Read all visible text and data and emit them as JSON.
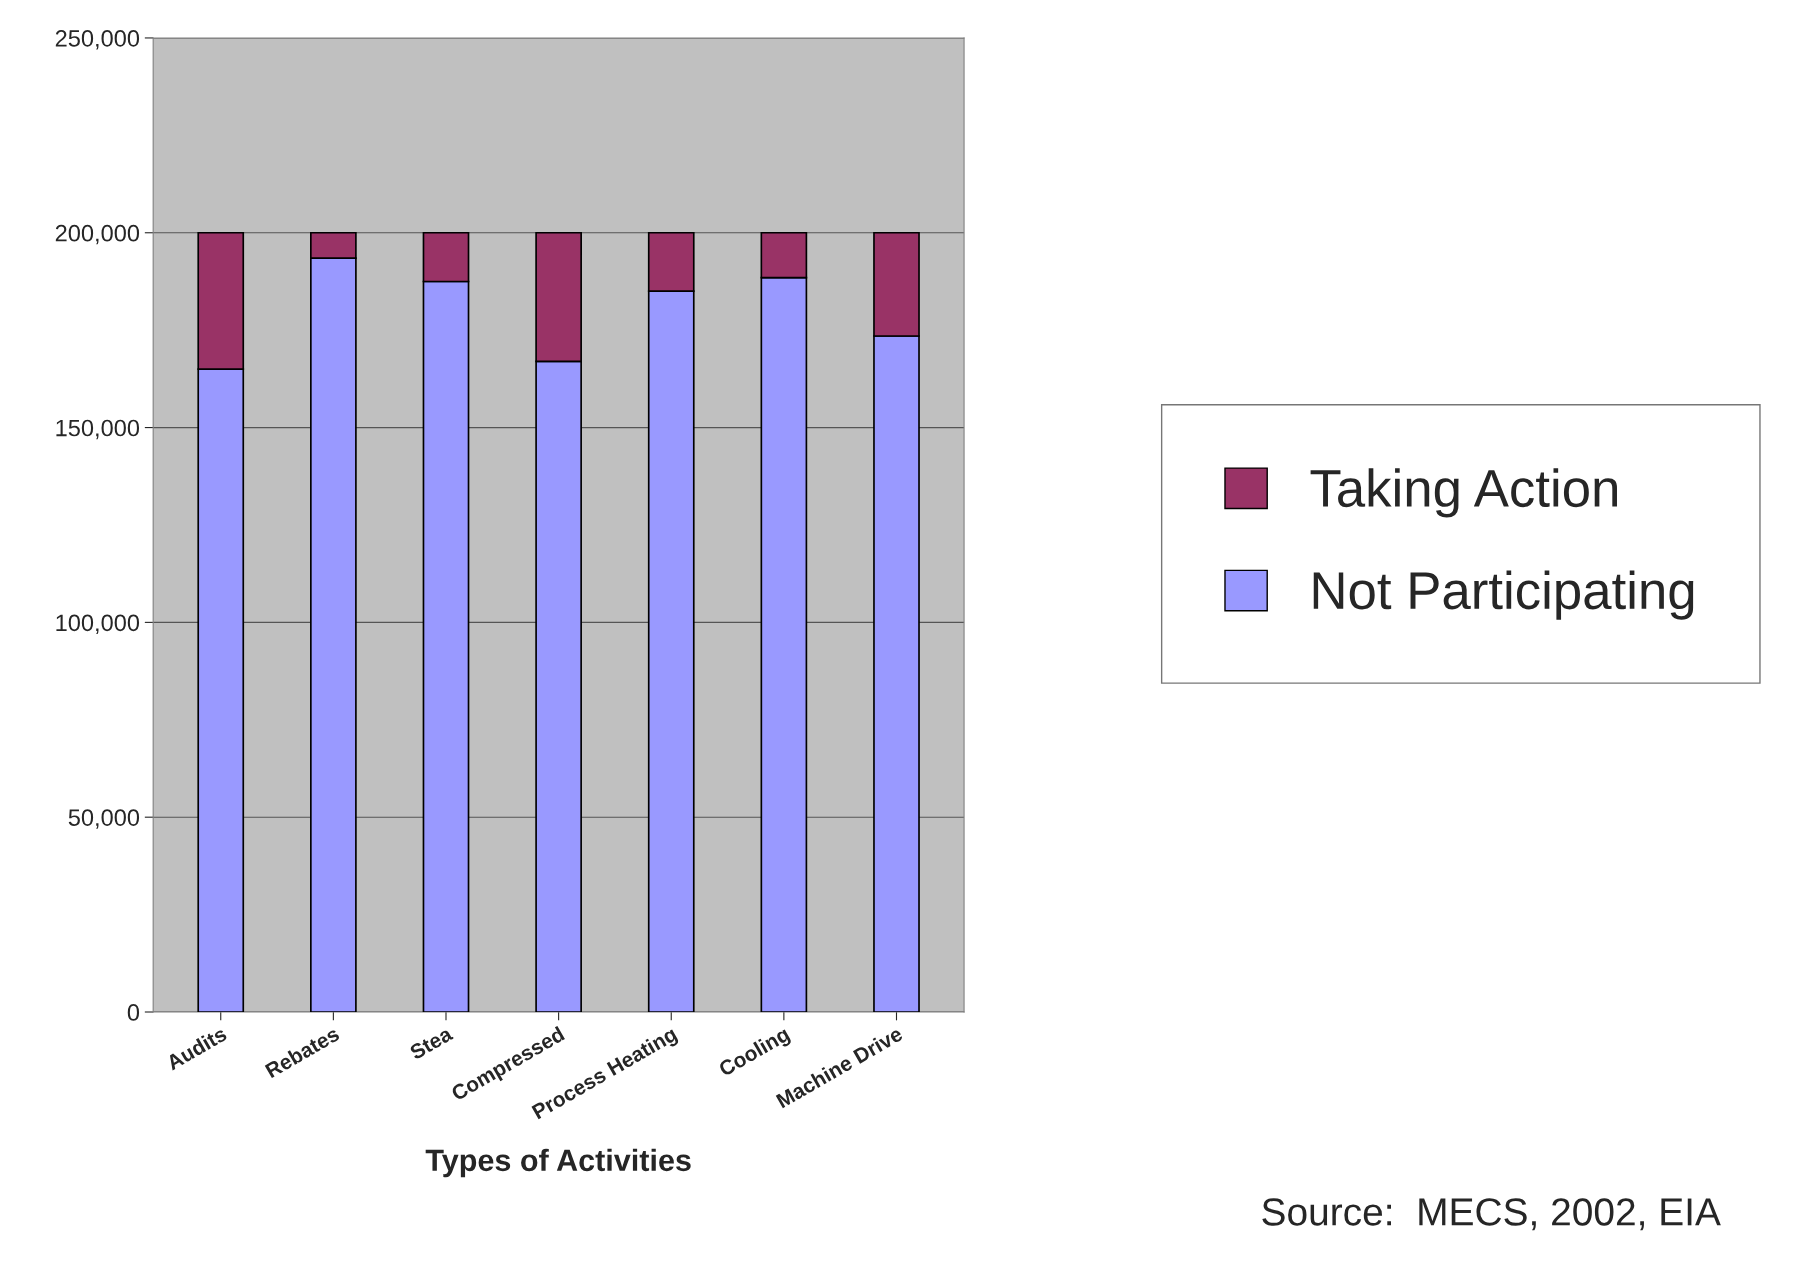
{
  "chart_data": {
    "type": "bar",
    "stacked": true,
    "xlabel": "Types of Activities",
    "categories": [
      "Audits",
      "Rebates",
      "Stea",
      "Compressed",
      "Process Heating",
      "Cooling",
      "Machine Drive"
    ],
    "series": [
      {
        "name": "Not Participating",
        "color": "#9999ff",
        "values": [
          165000,
          193500,
          187500,
          167000,
          185000,
          188500,
          173500
        ]
      },
      {
        "name": "Taking Action",
        "color": "#993366",
        "values": [
          35000,
          6500,
          12500,
          33000,
          15000,
          11500,
          26500
        ]
      }
    ],
    "ylim": [
      0,
      250000
    ],
    "yticks": [
      {
        "value": 0,
        "label": "0"
      },
      {
        "value": 50000,
        "label": "50,000"
      },
      {
        "value": 100000,
        "label": "100,000"
      },
      {
        "value": 150000,
        "label": "150,000"
      },
      {
        "value": 200000,
        "label": "200,000"
      },
      {
        "value": 250000,
        "label": "250,000"
      }
    ],
    "grid": "y",
    "legend": "right",
    "annotations": [
      "Source:  MECS, 2002, EIA"
    ]
  }
}
